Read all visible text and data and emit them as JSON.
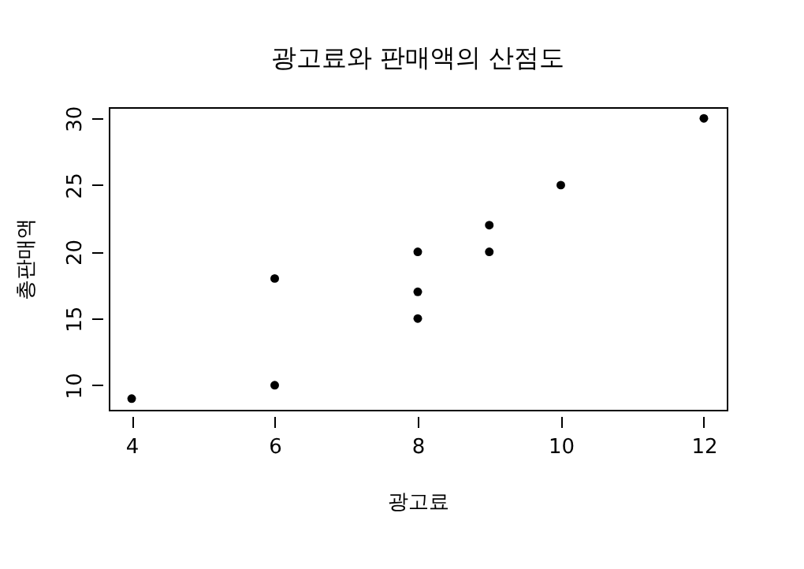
{
  "chart_data": {
    "type": "scatter",
    "title": "광고료와 판매액의 산점도",
    "xlabel": "광고료",
    "ylabel": "총판매액",
    "x": [
      4,
      6,
      6,
      8,
      8,
      8,
      9,
      9,
      10,
      12
    ],
    "series": [
      {
        "color": "#000000",
        "values": [
          9,
          10,
          18,
          15,
          17,
          20,
          20,
          22,
          25,
          30
        ]
      }
    ],
    "xlim": [
      3.68,
      12.32
    ],
    "xticks": [
      4,
      6,
      8,
      10,
      12
    ],
    "ylim": [
      8.16,
      30.84
    ],
    "yticks": [
      10,
      15,
      20,
      25,
      30
    ],
    "grid": false,
    "legend": false,
    "marker": "circle"
  }
}
